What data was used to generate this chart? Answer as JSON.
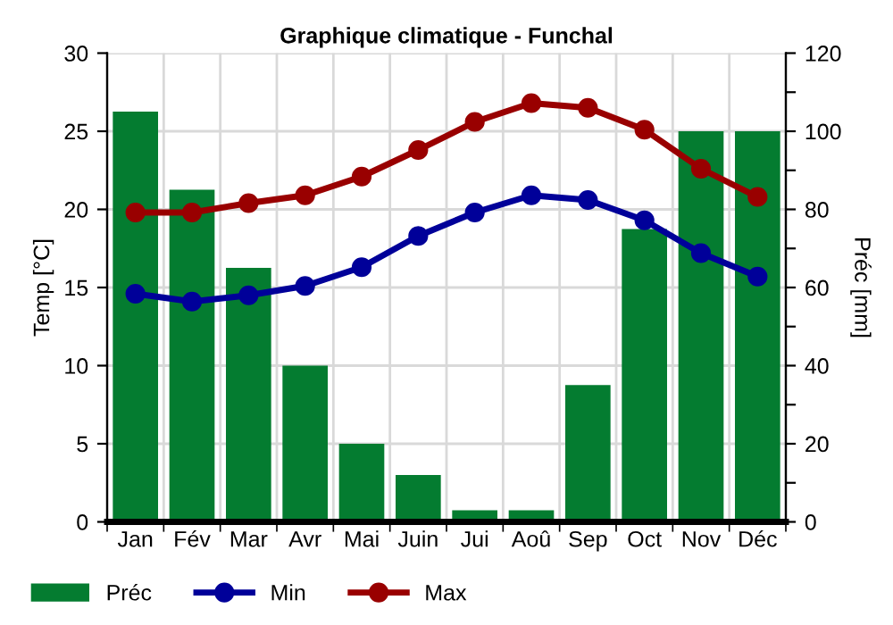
{
  "chart_data": {
    "type": "line",
    "title": "Graphique climatique - Funchal",
    "ylabel": "Temp [°C]",
    "y2label": "Préc [mm]",
    "categories": [
      "Jan",
      "Fév",
      "Mar",
      "Avr",
      "Mai",
      "Juin",
      "Jui",
      "Aoû",
      "Sep",
      "Oct",
      "Nov",
      "Déc"
    ],
    "series": [
      {
        "name": "Préc",
        "type": "bar",
        "axis": "y2",
        "color": "#047c30",
        "values": [
          105,
          85,
          65,
          40,
          20,
          12,
          3,
          3,
          35,
          75,
          100,
          100
        ]
      },
      {
        "name": "Min",
        "color": "#000099",
        "values": [
          14.6,
          14.1,
          14.5,
          15.1,
          16.3,
          18.3,
          19.8,
          20.9,
          20.6,
          19.3,
          17.2,
          15.7
        ]
      },
      {
        "name": "Max",
        "color": "#990000",
        "values": [
          19.8,
          19.8,
          20.4,
          20.9,
          22.1,
          23.8,
          25.6,
          26.8,
          26.5,
          25.1,
          22.6,
          20.8
        ]
      }
    ],
    "ylim": [
      0,
      30
    ],
    "yticks": [
      0,
      5,
      10,
      15,
      20,
      25,
      30
    ],
    "y2lim": [
      0,
      120
    ],
    "y2ticks": [
      0,
      {
        "value": 10,
        "label": null
      },
      20,
      {
        "value": 30,
        "label": null
      },
      40,
      {
        "value": 50,
        "label": null
      },
      60,
      {
        "value": 70,
        "label": null
      },
      80,
      {
        "value": 90,
        "label": null
      },
      100,
      {
        "value": 110,
        "label": null
      },
      120
    ],
    "grid": true,
    "legend": "bottom",
    "marker": "circle",
    "line_style": "solid"
  }
}
